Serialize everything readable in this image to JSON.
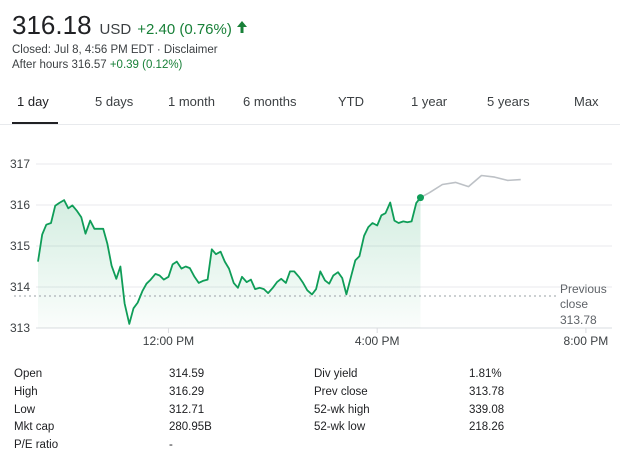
{
  "quote": {
    "price": "316.18",
    "currency": "USD",
    "change": "+2.40 (0.76%)",
    "closed_text": "Closed: Jul 8, 4:56 PM EDT",
    "disclaimer": "Disclaimer",
    "separator": " · ",
    "after_hours_label": "After hours 316.57",
    "after_hours_change": "+0.39 (0.12%)",
    "colors": {
      "positive": "#188038",
      "line": "#0f9d58",
      "after_hours_line": "#bdc1c6"
    }
  },
  "tabs": [
    {
      "label": "1 day",
      "active": true
    },
    {
      "label": "5 days"
    },
    {
      "label": "1 month"
    },
    {
      "label": "6 months"
    },
    {
      "label": "YTD"
    },
    {
      "label": "1 year"
    },
    {
      "label": "5 years"
    },
    {
      "label": "Max"
    }
  ],
  "chart_data": {
    "type": "line",
    "y_ticks": [
      "317",
      "316",
      "315",
      "314",
      "313"
    ],
    "x_ticks": [
      "12:00 PM",
      "4:00 PM",
      "8:00 PM"
    ],
    "ylim": [
      313,
      317
    ],
    "previous_close": {
      "label_line1": "Previous",
      "label_line2": "close",
      "value_label": "313.78",
      "value": 313.78
    },
    "series": [
      {
        "values": [
          [
            9.5,
            314.62
          ],
          [
            9.58,
            315.28
          ],
          [
            9.66,
            315.52
          ],
          [
            9.75,
            315.56
          ],
          [
            9.83,
            315.98
          ],
          [
            9.91,
            316.05
          ],
          [
            10.0,
            316.12
          ],
          [
            10.08,
            315.92
          ],
          [
            10.16,
            315.99
          ],
          [
            10.25,
            315.85
          ],
          [
            10.33,
            315.7
          ],
          [
            10.41,
            315.3
          ],
          [
            10.5,
            315.62
          ],
          [
            10.58,
            315.42
          ],
          [
            10.66,
            315.42
          ],
          [
            10.75,
            315.42
          ],
          [
            10.83,
            315.05
          ],
          [
            10.91,
            314.52
          ],
          [
            11.0,
            314.2
          ],
          [
            11.08,
            314.5
          ],
          [
            11.16,
            313.6
          ],
          [
            11.25,
            313.1
          ],
          [
            11.33,
            313.48
          ],
          [
            11.41,
            313.62
          ],
          [
            11.5,
            313.9
          ],
          [
            11.58,
            314.08
          ],
          [
            11.66,
            314.18
          ],
          [
            11.75,
            314.32
          ],
          [
            11.83,
            314.28
          ],
          [
            11.91,
            314.18
          ],
          [
            12.0,
            314.25
          ],
          [
            12.08,
            314.55
          ],
          [
            12.16,
            314.62
          ],
          [
            12.25,
            314.45
          ],
          [
            12.33,
            314.5
          ],
          [
            12.41,
            314.46
          ],
          [
            12.5,
            314.25
          ],
          [
            12.58,
            314.1
          ],
          [
            12.66,
            314.15
          ],
          [
            12.75,
            314.18
          ],
          [
            12.83,
            314.92
          ],
          [
            12.91,
            314.8
          ],
          [
            13.0,
            314.86
          ],
          [
            13.08,
            314.62
          ],
          [
            13.16,
            314.45
          ],
          [
            13.25,
            314.1
          ],
          [
            13.33,
            313.98
          ],
          [
            13.41,
            314.25
          ],
          [
            13.5,
            314.12
          ],
          [
            13.58,
            314.18
          ],
          [
            13.66,
            313.95
          ],
          [
            13.75,
            313.98
          ],
          [
            13.83,
            313.95
          ],
          [
            13.91,
            313.85
          ],
          [
            14.0,
            313.98
          ],
          [
            14.08,
            314.12
          ],
          [
            14.16,
            314.2
          ],
          [
            14.25,
            314.1
          ],
          [
            14.33,
            314.38
          ],
          [
            14.41,
            314.38
          ],
          [
            14.5,
            314.25
          ],
          [
            14.58,
            314.1
          ],
          [
            14.66,
            313.92
          ],
          [
            14.75,
            313.82
          ],
          [
            14.83,
            313.95
          ],
          [
            14.91,
            314.38
          ],
          [
            15.0,
            314.16
          ],
          [
            15.08,
            314.08
          ],
          [
            15.16,
            314.28
          ],
          [
            15.25,
            314.36
          ],
          [
            15.33,
            314.22
          ],
          [
            15.41,
            313.82
          ],
          [
            15.5,
            314.26
          ],
          [
            15.58,
            314.65
          ],
          [
            15.66,
            314.75
          ],
          [
            15.75,
            315.25
          ],
          [
            15.83,
            315.46
          ],
          [
            15.91,
            315.56
          ],
          [
            16.0,
            315.5
          ],
          [
            16.08,
            315.75
          ],
          [
            16.16,
            315.8
          ],
          [
            16.25,
            316.06
          ],
          [
            16.33,
            315.62
          ],
          [
            16.41,
            315.56
          ],
          [
            16.5,
            315.6
          ],
          [
            16.58,
            315.58
          ],
          [
            16.66,
            315.6
          ],
          [
            16.75,
            316.05
          ],
          [
            16.83,
            316.18
          ]
        ]
      },
      {
        "values": [
          [
            16.83,
            316.18
          ],
          [
            17.0,
            316.3
          ],
          [
            17.25,
            316.5
          ],
          [
            17.5,
            316.55
          ],
          [
            17.75,
            316.45
          ],
          [
            18.0,
            316.72
          ],
          [
            18.25,
            316.68
          ],
          [
            18.5,
            316.6
          ],
          [
            18.75,
            316.62
          ]
        ]
      }
    ]
  },
  "stats": [
    {
      "label": "Open",
      "value": "314.59",
      "label2": "Div yield",
      "value2": "1.81%"
    },
    {
      "label": "High",
      "value": "316.29",
      "label2": "Prev close",
      "value2": "313.78"
    },
    {
      "label": "Low",
      "value": "312.71",
      "label2": "52-wk high",
      "value2": "339.08"
    },
    {
      "label": "Mkt cap",
      "value": "280.95B",
      "label2": "52-wk low",
      "value2": "218.26"
    },
    {
      "label": "P/E ratio",
      "value": "-",
      "label2": "",
      "value2": ""
    }
  ]
}
